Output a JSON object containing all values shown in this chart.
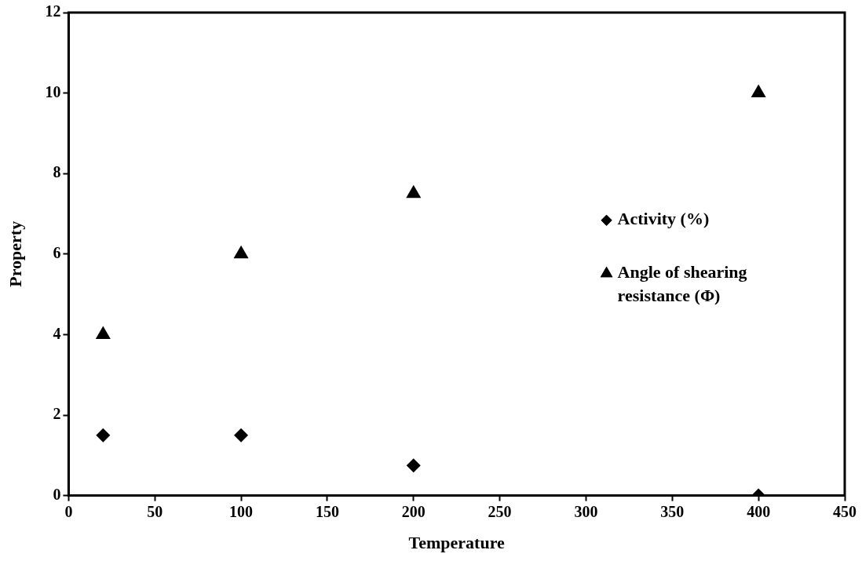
{
  "chart_data": {
    "type": "scatter",
    "xlabel": "Temperature",
    "ylabel": "Property",
    "xlim": [
      0,
      450
    ],
    "xticks": [
      0,
      50,
      100,
      150,
      200,
      250,
      300,
      350,
      400,
      450
    ],
    "ylim": [
      0,
      12
    ],
    "yticks": [
      0,
      2,
      4,
      6,
      8,
      10,
      12
    ],
    "grid": false,
    "legend": "right",
    "series": [
      {
        "name": "Activity (%)",
        "color": "#000000",
        "marker": "diamond",
        "x": [
          20,
          100,
          200,
          400
        ],
        "values": [
          1.5,
          1.5,
          0.75,
          0
        ]
      },
      {
        "name": "Angle of shearing resistance (Φ)",
        "color": "#000000",
        "marker": "triangle",
        "x": [
          20,
          100,
          200,
          400
        ],
        "values": [
          4,
          6,
          7.5,
          10
        ]
      }
    ]
  }
}
